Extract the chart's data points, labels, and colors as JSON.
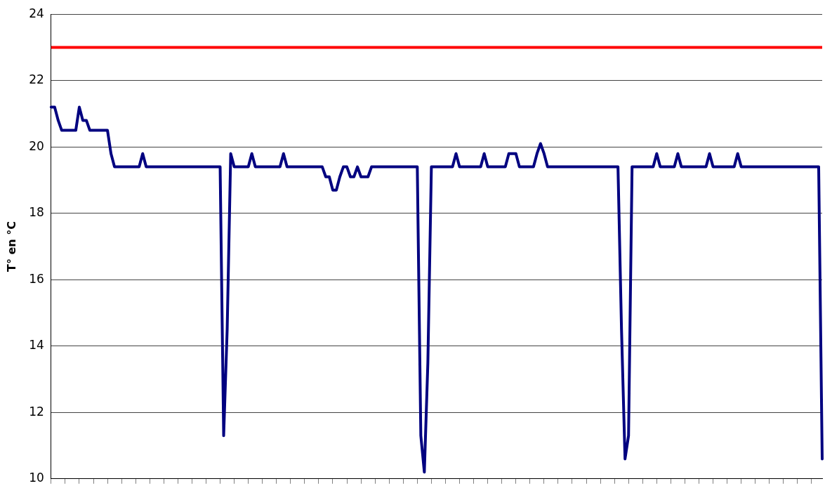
{
  "chart_data": {
    "type": "line",
    "ylabel": "T° en °C",
    "categories": [
      null,
      null,
      null,
      null,
      null,
      null,
      null,
      null,
      null,
      null,
      null,
      null,
      null,
      null,
      null,
      null,
      null,
      null,
      null,
      null,
      null,
      null,
      null,
      null,
      null,
      null,
      null,
      null,
      null,
      null,
      null,
      null,
      null,
      null,
      null,
      null,
      null,
      null,
      null,
      null,
      null,
      null,
      null,
      null,
      null,
      null,
      null,
      null,
      null,
      null,
      null,
      null,
      null,
      null,
      null,
      null,
      null,
      null,
      null,
      null,
      null,
      null,
      null,
      null,
      null,
      null,
      null,
      null,
      null,
      null,
      null,
      null,
      null,
      null,
      null,
      null,
      null,
      null,
      null,
      null,
      null,
      null,
      null,
      null,
      null,
      null,
      null,
      null,
      null,
      null,
      null,
      null,
      null,
      null,
      null,
      null,
      null,
      null,
      null,
      null,
      null,
      null,
      null,
      null,
      null,
      null,
      null,
      null,
      null,
      null,
      null,
      null,
      null,
      null,
      null,
      null,
      null,
      null,
      null,
      null,
      null,
      null,
      null,
      null,
      null,
      null,
      null,
      null,
      null,
      null,
      null,
      null,
      null,
      null,
      null,
      null,
      null,
      null,
      null,
      null,
      null,
      null,
      null,
      null,
      null,
      null,
      null,
      null,
      null,
      null,
      null,
      null,
      null,
      null,
      null,
      null,
      null,
      null,
      null,
      null,
      null,
      null,
      null,
      null,
      null,
      null,
      null,
      null,
      null,
      null,
      null,
      null,
      null,
      null,
      null,
      null,
      null,
      null,
      null,
      null,
      null,
      null,
      null,
      null,
      null,
      null,
      null,
      null,
      null,
      null,
      null,
      null,
      null,
      null,
      null,
      null,
      null,
      null,
      null,
      null,
      null,
      null,
      null,
      null,
      null,
      null,
      null,
      null,
      null,
      null,
      null,
      null,
      null,
      null,
      null,
      null,
      null,
      null,
      null,
      null
    ],
    "series": [
      {
        "color": "#000080",
        "values": [
          21.2,
          21.2,
          20.8,
          20.5,
          20.5,
          20.5,
          20.5,
          20.5,
          21.2,
          20.8,
          20.8,
          20.5,
          20.5,
          20.5,
          20.5,
          20.5,
          20.5,
          19.8,
          19.4,
          19.4,
          19.4,
          19.4,
          19.4,
          19.4,
          19.4,
          19.4,
          19.8,
          19.4,
          19.4,
          19.4,
          19.4,
          19.4,
          19.4,
          19.4,
          19.4,
          19.4,
          19.4,
          19.4,
          19.4,
          19.4,
          19.4,
          19.4,
          19.4,
          19.4,
          19.4,
          19.4,
          19.4,
          19.4,
          19.4,
          11.3,
          14.5,
          19.8,
          19.4,
          19.4,
          19.4,
          19.4,
          19.4,
          19.8,
          19.4,
          19.4,
          19.4,
          19.4,
          19.4,
          19.4,
          19.4,
          19.4,
          19.8,
          19.4,
          19.4,
          19.4,
          19.4,
          19.4,
          19.4,
          19.4,
          19.4,
          19.4,
          19.4,
          19.4,
          19.1,
          19.1,
          18.7,
          18.7,
          19.1,
          19.4,
          19.4,
          19.1,
          19.1,
          19.4,
          19.1,
          19.1,
          19.1,
          19.4,
          19.4,
          19.4,
          19.4,
          19.4,
          19.4,
          19.4,
          19.4,
          19.4,
          19.4,
          19.4,
          19.4,
          19.4,
          19.4,
          11.3,
          10.2,
          13.5,
          19.4,
          19.4,
          19.4,
          19.4,
          19.4,
          19.4,
          19.4,
          19.8,
          19.4,
          19.4,
          19.4,
          19.4,
          19.4,
          19.4,
          19.4,
          19.8,
          19.4,
          19.4,
          19.4,
          19.4,
          19.4,
          19.4,
          19.8,
          19.8,
          19.8,
          19.4,
          19.4,
          19.4,
          19.4,
          19.4,
          19.8,
          20.1,
          19.8,
          19.4,
          19.4,
          19.4,
          19.4,
          19.4,
          19.4,
          19.4,
          19.4,
          19.4,
          19.4,
          19.4,
          19.4,
          19.4,
          19.4,
          19.4,
          19.4,
          19.4,
          19.4,
          19.4,
          19.4,
          19.4,
          14.5,
          10.6,
          11.3,
          19.4,
          19.4,
          19.4,
          19.4,
          19.4,
          19.4,
          19.4,
          19.8,
          19.4,
          19.4,
          19.4,
          19.4,
          19.4,
          19.8,
          19.4,
          19.4,
          19.4,
          19.4,
          19.4,
          19.4,
          19.4,
          19.4,
          19.8,
          19.4,
          19.4,
          19.4,
          19.4,
          19.4,
          19.4,
          19.4,
          19.8,
          19.4,
          19.4,
          19.4,
          19.4,
          19.4,
          19.4,
          19.4,
          19.4,
          19.4,
          19.4,
          19.4,
          19.4,
          19.4,
          19.4,
          19.4,
          19.4,
          19.4,
          19.4,
          19.4,
          19.4,
          19.4,
          19.4,
          19.4,
          10.6
        ]
      }
    ],
    "ylim": [
      10,
      24
    ],
    "yticks": [
      10,
      12,
      14,
      16,
      18,
      20,
      22,
      24
    ],
    "grid": "y",
    "legend": false,
    "marker": "none",
    "line_style": "solid",
    "tick_labels": "y",
    "ref_lines": [
      {
        "axis": "y",
        "value": 23,
        "color": "#ff0000"
      }
    ]
  }
}
